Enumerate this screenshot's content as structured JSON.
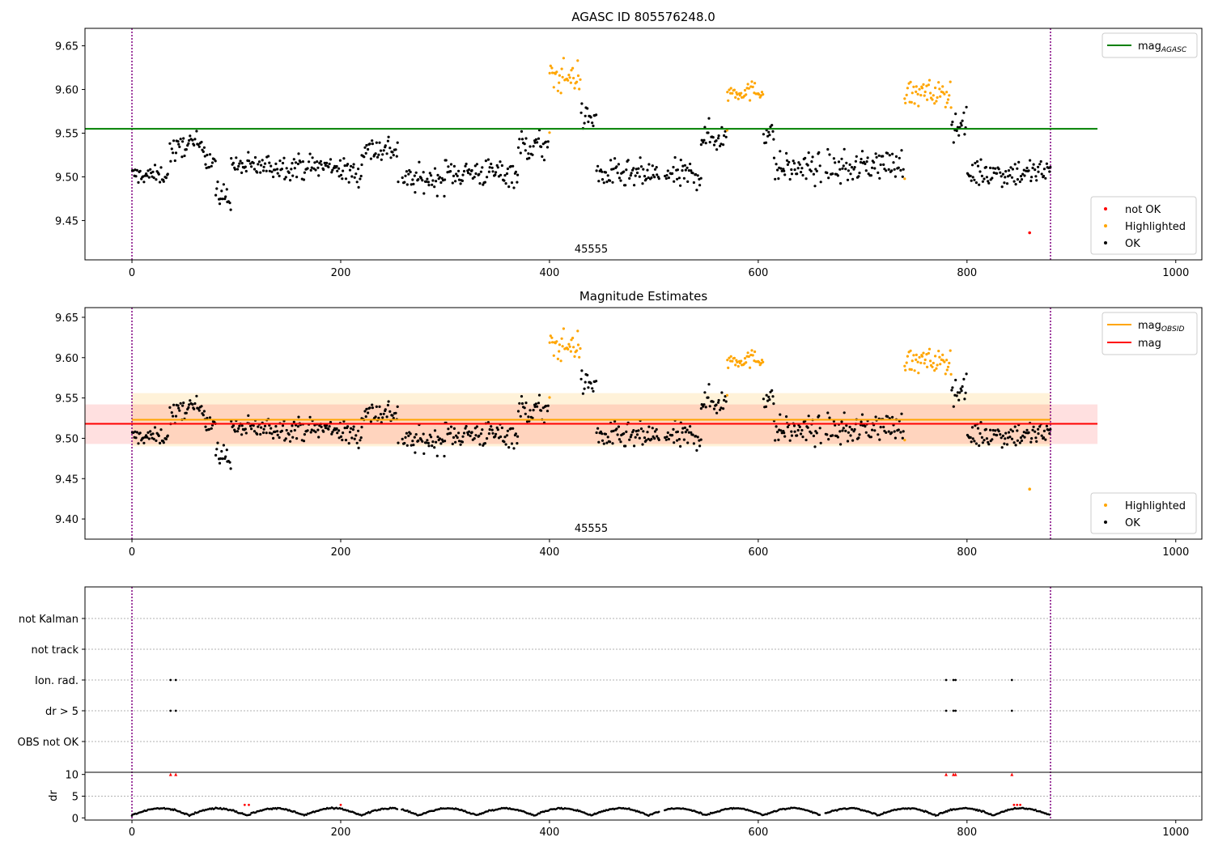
{
  "chart_data": [
    {
      "type": "scatter",
      "title": "AGASC ID 805576248.0",
      "xlim": [
        -45,
        1025
      ],
      "ylim": [
        9.405,
        9.67
      ],
      "xticks": [
        0,
        200,
        400,
        600,
        800,
        1000
      ],
      "yticks": [
        9.45,
        9.5,
        9.55,
        9.6,
        9.65
      ],
      "obsid_label": "45555",
      "obsid_label_x": 440,
      "obsid_bounds": [
        0,
        880
      ],
      "lines": [
        {
          "name": "mag",
          "sub": "AGASC",
          "y": 9.555,
          "x": [
            -45,
            925
          ],
          "color": "#008000"
        }
      ],
      "legend_lines": {
        "position": "upper right"
      },
      "legend_points": {
        "position": "lower right",
        "entries": [
          {
            "label": "not OK",
            "color": "#ff0000"
          },
          {
            "label": "Highlighted",
            "color": "#ffa500"
          },
          {
            "label": "OK",
            "color": "#000000"
          }
        ]
      },
      "not_ok_points": [
        [
          852,
          9.436
        ]
      ],
      "highlight_ranges": [
        [
          400,
          430
        ],
        [
          570,
          605
        ],
        [
          740,
          785
        ]
      ]
    },
    {
      "type": "scatter",
      "title": "Magnitude Estimates",
      "xlim": [
        -45,
        1025
      ],
      "ylim": [
        9.375,
        9.662
      ],
      "xticks": [
        0,
        200,
        400,
        600,
        800,
        1000
      ],
      "yticks": [
        9.4,
        9.45,
        9.5,
        9.55,
        9.6,
        9.65
      ],
      "obsid_label": "45555",
      "obsid_label_x": 440,
      "obsid_bounds": [
        0,
        880
      ],
      "lines": [
        {
          "name": "mag",
          "sub": "OBSID",
          "y": 9.523,
          "x": [
            0,
            880
          ],
          "color": "#ffa500"
        },
        {
          "name": "mag",
          "sub": "",
          "y": 9.518,
          "x": [
            -45,
            925
          ],
          "color": "#ff0000"
        }
      ],
      "bands": [
        {
          "y": [
            9.49,
            9.556
          ],
          "x": [
            0,
            880
          ],
          "color": "#ffa500",
          "opacity": 0.15
        },
        {
          "y": [
            9.493,
            9.542
          ],
          "x": [
            -45,
            925
          ],
          "color": "#ff0000",
          "opacity": 0.12
        }
      ],
      "legend_lines": {
        "position": "upper right"
      },
      "legend_points": {
        "position": "lower right",
        "entries": [
          {
            "label": "Highlighted",
            "color": "#ffa500"
          },
          {
            "label": "OK",
            "color": "#000000"
          }
        ]
      },
      "extra_points": [
        [
          860,
          9.437
        ]
      ],
      "highlight_ranges": [
        [
          400,
          430
        ],
        [
          570,
          605
        ],
        [
          740,
          785
        ]
      ]
    },
    {
      "type": "scatter",
      "title": "",
      "xlim": [
        -45,
        1025
      ],
      "xticks": [
        0,
        200,
        400,
        600,
        800,
        1000
      ],
      "flag_categories": [
        "not Kalman",
        "not track",
        "Ion. rad.",
        "dr > 5",
        "OBS not OK"
      ],
      "flag_points": {
        "Ion. rad.": [
          37,
          42,
          780,
          787,
          789,
          843
        ],
        "dr > 5": [
          37,
          42,
          780,
          787,
          789,
          843
        ]
      },
      "dr_axis": {
        "ylabel": "dr",
        "ylim": [
          -0.5,
          10.5
        ],
        "yticks": [
          0,
          5,
          10
        ],
        "threshold": 5,
        "red_clipped_x": [
          37,
          42,
          780,
          787,
          789,
          843
        ],
        "red_x": [
          108,
          112,
          200,
          845,
          848,
          851
        ]
      },
      "obsid_bounds": [
        0,
        880
      ]
    }
  ]
}
